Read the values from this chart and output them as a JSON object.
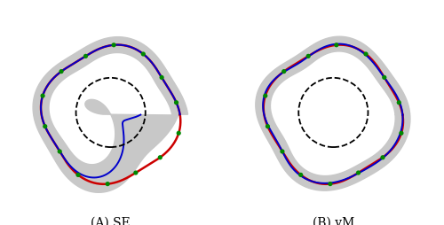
{
  "title_A": "(A) SE",
  "title_B": "(B) vM",
  "bg_color": "#ffffff",
  "gray_color": "#c8c8c8",
  "red_color": "#cc0000",
  "blue_color": "#0000cc",
  "green_color": "#008800",
  "font_size": 10,
  "n_data_points": 14,
  "dashed_circle_r": 0.35
}
